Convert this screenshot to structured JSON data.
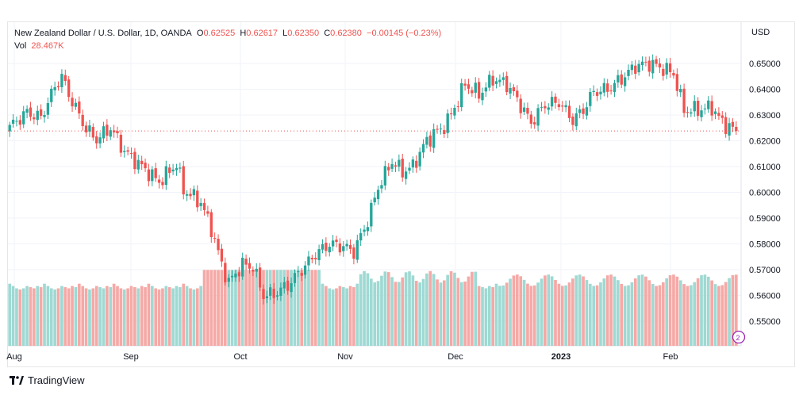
{
  "legend": {
    "symbol": "New Zealand Dollar / U.S. Dollar, 1D, OANDA",
    "open_label": "O",
    "open": "0.62525",
    "high_label": "H",
    "high": "0.62617",
    "low_label": "L",
    "low": "0.62350",
    "close_label": "C",
    "close": "0.62380",
    "change": "−0.00145 (−0.23%)",
    "vol_label": "Vol",
    "vol": "28.467K"
  },
  "currency": "USD",
  "brand": "TradingView",
  "colors": {
    "up": "#26a69a",
    "down": "#ef5350",
    "up_vol": "#9fd9d3",
    "down_vol": "#f5a9a6",
    "last_line": "#ef5350"
  },
  "chart_data": {
    "type": "candlestick",
    "y_axis": {
      "ticks": [
        "0.65000",
        "0.64000",
        "0.63000",
        "0.62000",
        "0.61000",
        "0.60000",
        "0.59000",
        "0.58000",
        "0.57000",
        "0.56000",
        "0.55000"
      ],
      "range": [
        0.546,
        0.6575
      ]
    },
    "x_axis": {
      "ticks": [
        "Aug",
        "Sep",
        "Oct",
        "Nov",
        "Dec",
        "2023",
        "Feb"
      ]
    },
    "last_close": 0.6238,
    "price_anchors": [
      [
        0,
        0.6255
      ],
      [
        5,
        0.631
      ],
      [
        9,
        0.629
      ],
      [
        13,
        0.641
      ],
      [
        15,
        0.645
      ],
      [
        17,
        0.638
      ],
      [
        22,
        0.6245
      ],
      [
        25,
        0.6205
      ],
      [
        29,
        0.625
      ],
      [
        33,
        0.616
      ],
      [
        38,
        0.61
      ],
      [
        43,
        0.604
      ],
      [
        48,
        0.611
      ],
      [
        50,
        0.601
      ],
      [
        55,
        0.596
      ],
      [
        58,
        0.586
      ],
      [
        61,
        0.572
      ],
      [
        63,
        0.565
      ],
      [
        67,
        0.572
      ],
      [
        70,
        0.571
      ],
      [
        73,
        0.56
      ],
      [
        76,
        0.5605
      ],
      [
        80,
        0.564
      ],
      [
        84,
        0.57
      ],
      [
        88,
        0.576
      ],
      [
        92,
        0.58
      ],
      [
        96,
        0.579
      ],
      [
        99,
        0.577
      ],
      [
        103,
        0.589
      ],
      [
        106,
        0.602
      ],
      [
        110,
        0.612
      ],
      [
        113,
        0.608
      ],
      [
        116,
        0.61
      ],
      [
        119,
        0.618
      ],
      [
        122,
        0.623
      ],
      [
        124,
        0.624
      ],
      [
        127,
        0.63
      ],
      [
        131,
        0.642
      ],
      [
        135,
        0.638
      ],
      [
        139,
        0.644
      ],
      [
        143,
        0.642
      ],
      [
        146,
        0.636
      ],
      [
        150,
        0.627
      ],
      [
        154,
        0.634
      ],
      [
        158,
        0.635
      ],
      [
        162,
        0.628
      ],
      [
        165,
        0.632
      ],
      [
        168,
        0.639
      ],
      [
        172,
        0.64
      ],
      [
        176,
        0.644
      ],
      [
        180,
        0.649
      ],
      [
        184,
        0.65
      ],
      [
        188,
        0.648
      ],
      [
        191,
        0.646
      ],
      [
        194,
        0.632
      ],
      [
        198,
        0.632
      ],
      [
        202,
        0.633
      ],
      [
        205,
        0.627
      ],
      [
        209,
        0.6238
      ]
    ],
    "volume_pattern": [
      0.54,
      0.52,
      0.5,
      0.49,
      0.5,
      0.52,
      0.51,
      0.5,
      0.52,
      0.51
    ]
  }
}
